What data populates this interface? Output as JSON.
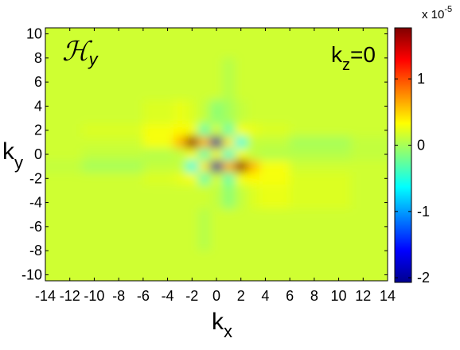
{
  "chart_data": {
    "type": "heatmap",
    "title": {
      "text": "ℋ",
      "subscript": "y"
    },
    "annotation": {
      "text": "k",
      "subscript": "z",
      "suffix": "=0"
    },
    "x_label": {
      "text": "k",
      "subscript": "x"
    },
    "y_label": {
      "text": "k",
      "subscript": "y"
    },
    "colormap": "jet",
    "x": [
      -14,
      -8,
      -4,
      -3,
      -2,
      -1,
      0,
      1,
      2,
      3,
      4,
      8,
      14
    ],
    "y": [
      10,
      6,
      3,
      2,
      1,
      0,
      -1,
      -2,
      -3,
      -6,
      -10
    ],
    "z": [
      [
        0.15,
        0.15,
        0.15,
        0.15,
        0.15,
        0.15,
        0.15,
        0.15,
        0.15,
        0.15,
        0.15,
        0.15,
        0.15
      ],
      [
        0.15,
        0.15,
        0.15,
        0.15,
        0.15,
        0.15,
        0.15,
        0.05,
        0.15,
        0.15,
        0.15,
        0.15,
        0.15
      ],
      [
        0.15,
        0.15,
        0.2,
        0.25,
        0.2,
        0.1,
        -0.1,
        0.0,
        0.1,
        0.15,
        0.15,
        0.15,
        0.15
      ],
      [
        0.15,
        0.2,
        0.3,
        0.35,
        0.3,
        -0.3,
        0.2,
        -0.3,
        0.3,
        0.25,
        0.2,
        0.15,
        0.15
      ],
      [
        0.15,
        0.15,
        0.3,
        0.6,
        1.7,
        0.6,
        -2.0,
        0.4,
        -0.5,
        0.1,
        0.1,
        0.0,
        0.1
      ],
      [
        0.15,
        0.1,
        0.05,
        0.1,
        0.3,
        -0.3,
        0.3,
        -0.4,
        0.3,
        0.1,
        0.05,
        0.05,
        0.1
      ],
      [
        0.1,
        0.0,
        0.1,
        0.1,
        -0.5,
        0.4,
        -2.0,
        0.6,
        1.7,
        0.6,
        0.3,
        0.15,
        0.15
      ],
      [
        0.15,
        0.15,
        0.2,
        0.25,
        0.3,
        -0.3,
        0.2,
        -0.3,
        0.3,
        0.35,
        0.3,
        0.2,
        0.15
      ],
      [
        0.15,
        0.15,
        0.15,
        0.15,
        0.15,
        0.15,
        0.1,
        -0.1,
        0.1,
        0.2,
        0.25,
        0.2,
        0.15
      ],
      [
        0.15,
        0.15,
        0.15,
        0.15,
        0.15,
        0.05,
        0.15,
        0.15,
        0.15,
        0.15,
        0.15,
        0.15,
        0.15
      ],
      [
        0.15,
        0.15,
        0.15,
        0.15,
        0.15,
        0.15,
        0.15,
        0.15,
        0.15,
        0.15,
        0.15,
        0.15,
        0.15
      ]
    ],
    "xlim": [
      -14,
      14
    ],
    "ylim": [
      -10.5,
      10.5
    ],
    "xticks": [
      -14,
      -12,
      -10,
      -8,
      -6,
      -4,
      -2,
      0,
      2,
      4,
      6,
      8,
      10,
      12,
      14
    ],
    "yticks": [
      -10,
      -8,
      -6,
      -4,
      -2,
      0,
      2,
      4,
      6,
      8,
      10
    ],
    "clim": [
      -2.07,
      1.77
    ],
    "cticks": [
      -2,
      -1,
      0,
      1
    ],
    "colorbar_multiplier": {
      "text": "x 10",
      "exponent": "-5"
    }
  }
}
